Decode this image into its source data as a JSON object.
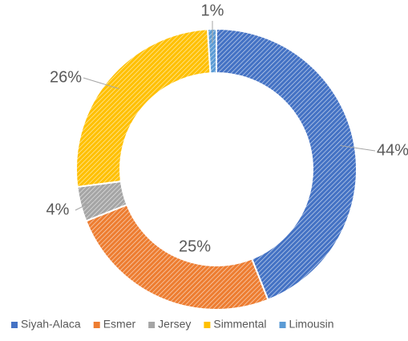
{
  "chart_data": {
    "type": "donut",
    "categories": [
      "Siyah-Alaca",
      "Esmer",
      "Jersey",
      "Simmental",
      "Limousin"
    ],
    "values": [
      44,
      25,
      4,
      26,
      1
    ],
    "value_labels": [
      "44%",
      "25%",
      "4%",
      "26%",
      "1%"
    ],
    "colors": [
      "#4472c4",
      "#ed7d31",
      "#a5a5a5",
      "#ffc000",
      "#5b9bd5"
    ],
    "legend": "bottom"
  }
}
